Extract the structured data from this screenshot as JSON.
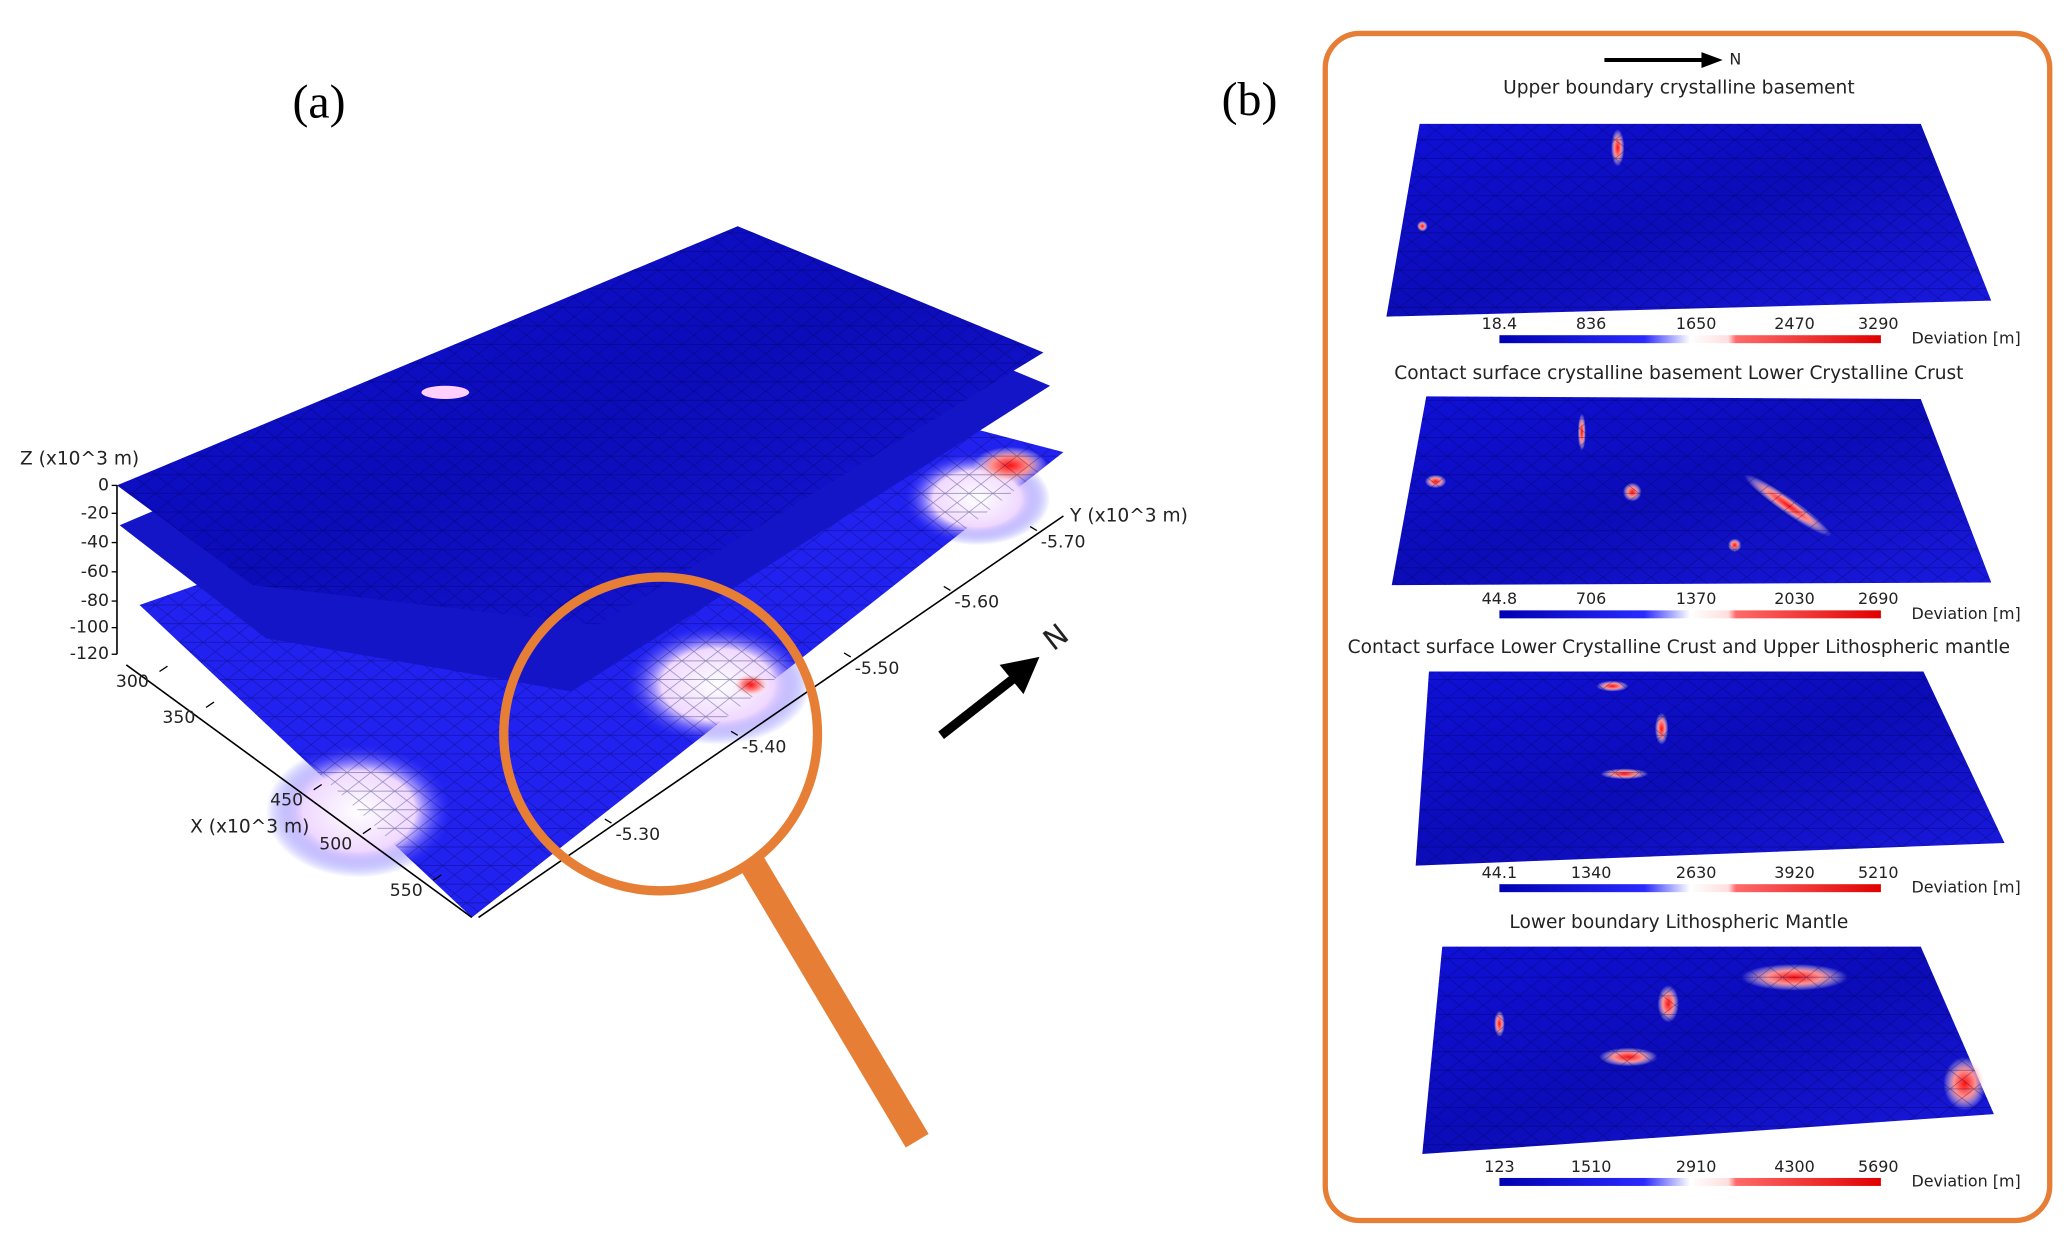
{
  "panels": {
    "a": {
      "label": "(a)",
      "z_axis": {
        "label": "Z (x10^3 m)",
        "ticks": [
          "0",
          "-20",
          "-40",
          "-60",
          "-80",
          "-100",
          "-120"
        ]
      },
      "x_axis": {
        "label": "X (x10^3 m)",
        "ticks": [
          "300",
          "350",
          "450",
          "500",
          "550"
        ]
      },
      "y_axis": {
        "label": "Y (x10^3 m)",
        "ticks": [
          "-5.30",
          "-5.40",
          "-5.50",
          "-5.60",
          "-5.70"
        ]
      },
      "north": "N"
    },
    "b": {
      "label": "(b)",
      "north": "N",
      "maps": [
        {
          "title": "Upper boundary crystalline basement",
          "colorbar": {
            "ticks": [
              "18.4",
              "836",
              "1650",
              "2470",
              "3290"
            ],
            "label": "Deviation [m]"
          }
        },
        {
          "title": "Contact surface crystalline basement Lower Crystalline Crust",
          "colorbar": {
            "ticks": [
              "44.8",
              "706",
              "1370",
              "2030",
              "2690"
            ],
            "label": "Deviation [m]"
          }
        },
        {
          "title": "Contact surface Lower Crystalline Crust and Upper Lithospheric mantle",
          "colorbar": {
            "ticks": [
              "44.1",
              "1340",
              "2630",
              "3920",
              "5210"
            ],
            "label": "Deviation [m]"
          }
        },
        {
          "title": "Lower boundary Lithospheric Mantle",
          "colorbar": {
            "ticks": [
              "123",
              "1510",
              "2910",
              "4300",
              "5690"
            ],
            "label": "Deviation [m]"
          }
        }
      ]
    }
  }
}
